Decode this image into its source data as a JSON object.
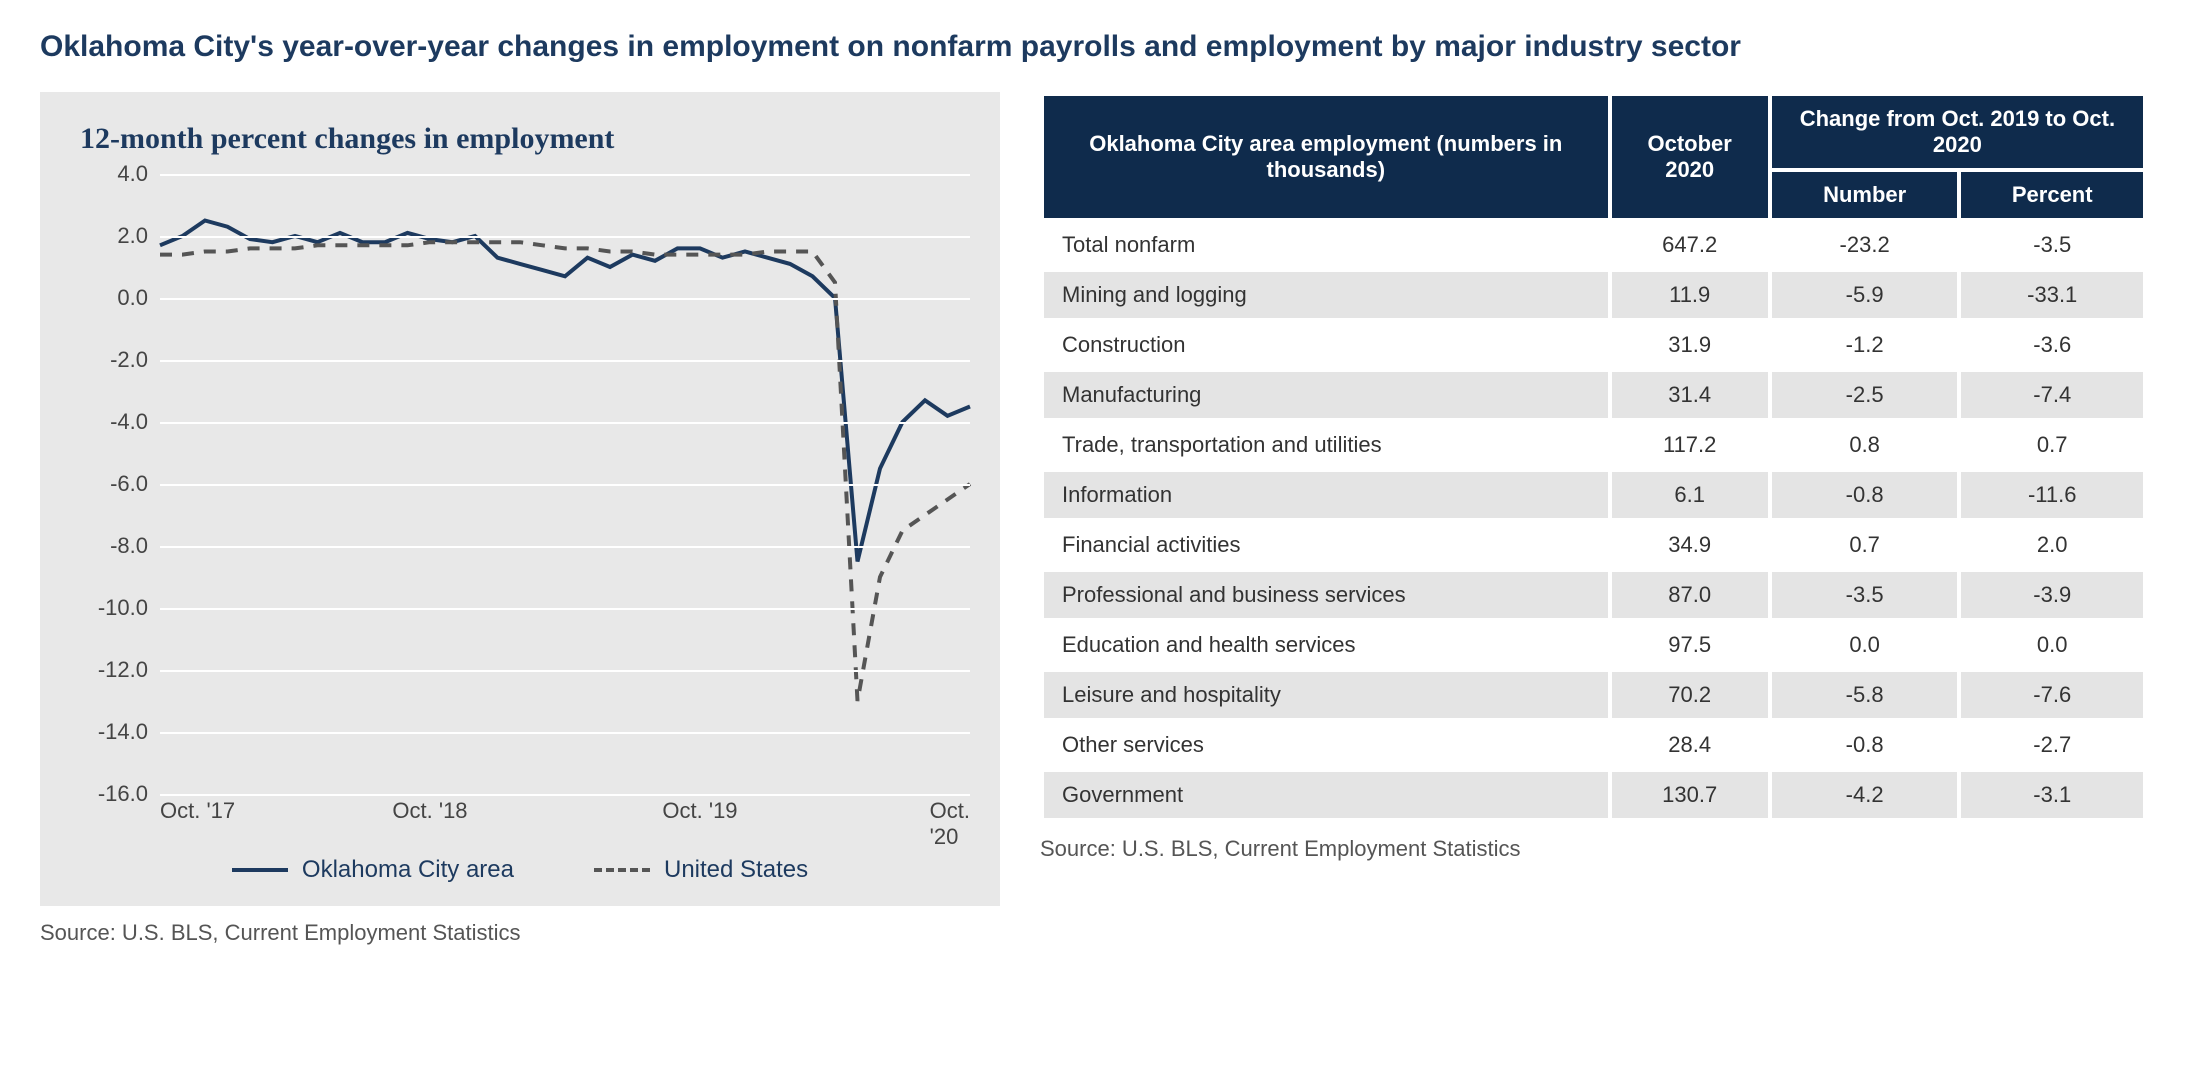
{
  "title": "Oklahoma City's year-over-year changes in employment on nonfarm payrolls and employment by major industry sector",
  "chart": {
    "type": "line",
    "title": "12-month percent changes in employment",
    "background_color": "#e8e8e8",
    "grid_color": "#ffffff",
    "title_color": "#1d3a5f",
    "title_fontsize": 30,
    "label_fontsize": 22,
    "ylim": [
      -16,
      4
    ],
    "ytick_step": 2,
    "yticks": [
      "4.0",
      "2.0",
      "0.0",
      "-2.0",
      "-4.0",
      "-6.0",
      "-8.0",
      "-10.0",
      "-12.0",
      "-14.0",
      "-16.0"
    ],
    "x_range_months": 37,
    "xticks": [
      {
        "month_index": 0,
        "label": "Oct. '17"
      },
      {
        "month_index": 12,
        "label": "Oct. '18"
      },
      {
        "month_index": 24,
        "label": "Oct. '19"
      },
      {
        "month_index": 36,
        "label": "Oct. '20"
      }
    ],
    "series": [
      {
        "name": "Oklahoma City area",
        "color": "#1d3a5f",
        "style": "solid",
        "line_width": 4,
        "values": [
          1.7,
          2.0,
          2.5,
          2.3,
          1.9,
          1.8,
          2.0,
          1.8,
          2.1,
          1.8,
          1.8,
          2.1,
          1.9,
          1.8,
          2.0,
          1.3,
          1.1,
          0.9,
          0.7,
          1.3,
          1.0,
          1.4,
          1.2,
          1.6,
          1.6,
          1.3,
          1.5,
          1.3,
          1.1,
          0.7,
          0.0,
          -8.5,
          -5.5,
          -4.0,
          -3.3,
          -3.8,
          -3.5
        ]
      },
      {
        "name": "United States",
        "color": "#555555",
        "style": "dashed",
        "line_width": 4,
        "values": [
          1.4,
          1.4,
          1.5,
          1.5,
          1.6,
          1.6,
          1.6,
          1.7,
          1.7,
          1.7,
          1.7,
          1.7,
          1.8,
          1.8,
          1.8,
          1.8,
          1.8,
          1.7,
          1.6,
          1.6,
          1.5,
          1.5,
          1.4,
          1.4,
          1.4,
          1.4,
          1.4,
          1.5,
          1.5,
          1.5,
          0.5,
          -13.0,
          -9.0,
          -7.5,
          -7.0,
          -6.5,
          -6.0
        ]
      }
    ],
    "legend": [
      "Oklahoma City area",
      "United States"
    ],
    "source": "Source: U.S. BLS, Current Employment Statistics"
  },
  "table": {
    "header_bg": "#0f2b4c",
    "header_fg": "#ffffff",
    "row_odd_bg": "#ffffff",
    "row_even_bg": "#e4e4e4",
    "fontsize": 22,
    "columns": {
      "c0": "Oklahoma City area employment (numbers in thousands)",
      "c1": "October 2020",
      "c2_group": "Change from Oct. 2019 to Oct. 2020",
      "c2a": "Number",
      "c2b": "Percent"
    },
    "rows": [
      {
        "label": "Total nonfarm",
        "oct2020": "647.2",
        "num": "-23.2",
        "pct": "-3.5"
      },
      {
        "label": "Mining and logging",
        "oct2020": "11.9",
        "num": "-5.9",
        "pct": "-33.1"
      },
      {
        "label": "Construction",
        "oct2020": "31.9",
        "num": "-1.2",
        "pct": "-3.6"
      },
      {
        "label": "Manufacturing",
        "oct2020": "31.4",
        "num": "-2.5",
        "pct": "-7.4"
      },
      {
        "label": "Trade, transportation and utilities",
        "oct2020": "117.2",
        "num": "0.8",
        "pct": "0.7"
      },
      {
        "label": "Information",
        "oct2020": "6.1",
        "num": "-0.8",
        "pct": "-11.6"
      },
      {
        "label": "Financial activities",
        "oct2020": "34.9",
        "num": "0.7",
        "pct": "2.0"
      },
      {
        "label": "Professional and business services",
        "oct2020": "87.0",
        "num": "-3.5",
        "pct": "-3.9"
      },
      {
        "label": "Education and health services",
        "oct2020": "97.5",
        "num": "0.0",
        "pct": "0.0"
      },
      {
        "label": "Leisure and hospitality",
        "oct2020": "70.2",
        "num": "-5.8",
        "pct": "-7.6"
      },
      {
        "label": "Other services",
        "oct2020": "28.4",
        "num": "-0.8",
        "pct": "-2.7"
      },
      {
        "label": "Government",
        "oct2020": "130.7",
        "num": "-4.2",
        "pct": "-3.1"
      }
    ],
    "source": "Source: U.S. BLS, Current Employment Statistics"
  }
}
